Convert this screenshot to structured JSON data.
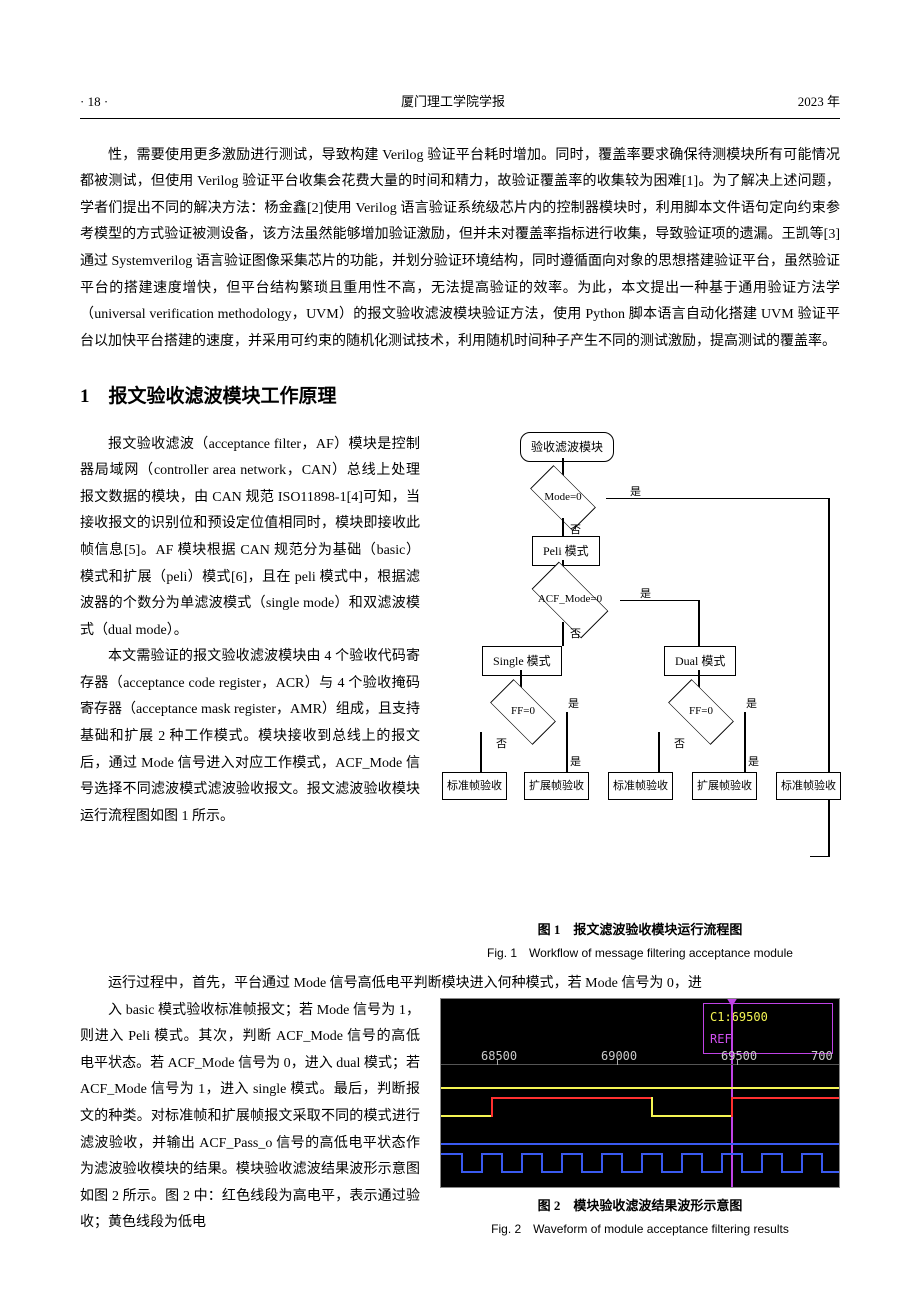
{
  "header": {
    "page": "· 18 ·",
    "journal": "厦门理工学院学报",
    "year": "2023 年"
  },
  "intro": {
    "p1": "性，需要使用更多激励进行测试，导致构建 Verilog 验证平台耗时增加。同时，覆盖率要求确保待测模块所有可能情况都被测试，但使用 Verilog 验证平台收集会花费大量的时间和精力，故验证覆盖率的收集较为困难[1]。为了解决上述问题，学者们提出不同的解决方法：杨金鑫[2]使用 Verilog 语言验证系统级芯片内的控制器模块时，利用脚本文件语句定向约束参考模型的方式验证被测设备，该方法虽然能够增加验证激励，但并未对覆盖率指标进行收集，导致验证项的遗漏。王凯等[3]通过 Systemverilog 语言验证图像采集芯片的功能，并划分验证环境结构，同时遵循面向对象的思想搭建验证平台，虽然验证平台的搭建速度增快，但平台结构繁琐且重用性不高，无法提高验证的效率。为此，本文提出一种基于通用验证方法学（universal verification methodology，UVM）的报文验收滤波模块验证方法，使用 Python 脚本语言自动化搭建 UVM 验证平台以加快平台搭建的速度，并采用可约束的随机化测试技术，利用随机时间种子产生不同的测试激励，提高测试的覆盖率。"
  },
  "section1": {
    "title": "1　报文验收滤波模块工作原理",
    "p1": "报文验收滤波（acceptance filter，AF）模块是控制器局域网（controller area network，CAN）总线上处理报文数据的模块，由 CAN 规范 ISO11898-1[4]可知，当接收报文的识别位和预设定位值相同时，模块即接收此帧信息[5]。AF 模块根据 CAN 规范分为基础（basic）模式和扩展（peli）模式[6]，且在 peli 模式中，根据滤波器的个数分为单滤波模式（single mode）和双滤波模式（dual mode）。",
    "p2": "本文需验证的报文验收滤波模块由 4 个验收代码寄存器（acceptance code register，ACR）与 4 个验收掩码寄存器（acceptance mask register，AMR）组成，且支持基础和扩展 2 种工作模式。模块接收到总线上的报文后，通过 Mode 信号进入对应工作模式，ACF_Mode 信号选择不同滤波模式滤波验收报文。报文滤波验收模块运行流程图如图 1 所示。",
    "bridge": "运行过程中，首先，平台通过 Mode 信号高低电平判断模块进入何种模式，若 Mode 信号为 0，进",
    "p3": "入 basic 模式验收标准帧报文；若 Mode 信号为 1，则进入 Peli 模式。其次，判断 ACF_Mode 信号的高低电平状态。若 ACF_Mode 信号为 0，进入 dual 模式；若 ACF_Mode 信号为 1，进入 single 模式。最后，判断报文的种类。对标准帧和扩展帧报文采取不同的模式进行滤波验收，并输出 ACF_Pass_o 信号的高低电平状态作为滤波验收模块的结果。模块验收滤波结果波形示意图如图 2 所示。图 2 中：红色线段为高电平，表示通过验收；黄色线段为低电"
  },
  "fig1": {
    "start": "验收滤波模块",
    "d1": "Mode=0",
    "d1_yes": "是",
    "d1_no": "否",
    "b1": "Peli 模式",
    "d2": "ACF_Mode=0",
    "d2_yes": "是",
    "d2_no": "否",
    "bL": "Single 模式",
    "bR": "Dual 模式",
    "dL": "FF=0",
    "dR": "FF=0",
    "yes": "是",
    "no": "否",
    "out1": "标准帧验收",
    "out2": "扩展帧验收",
    "out3": "标准帧验收",
    "out4": "扩展帧验收",
    "out5": "标准帧验收",
    "caption_cn": "图 1　报文滤波验收模块运行流程图",
    "caption_en": "Fig. 1　Workflow of message filtering acceptance module"
  },
  "fig2": {
    "cursor_top": "C1:69500",
    "cursor_bot": "REF",
    "ruler": {
      "t1": "68500",
      "t2": "69000",
      "t3": "69500",
      "t4": "700"
    },
    "colors": {
      "red": "#ff3030",
      "yellow": "#f5f553",
      "blue": "#3a5af0",
      "grid": "#3a3a3a"
    },
    "caption_cn": "图 2　模块验收滤波结果波形示意图",
    "caption_en": "Fig. 2　Waveform of module acceptance filtering results"
  }
}
